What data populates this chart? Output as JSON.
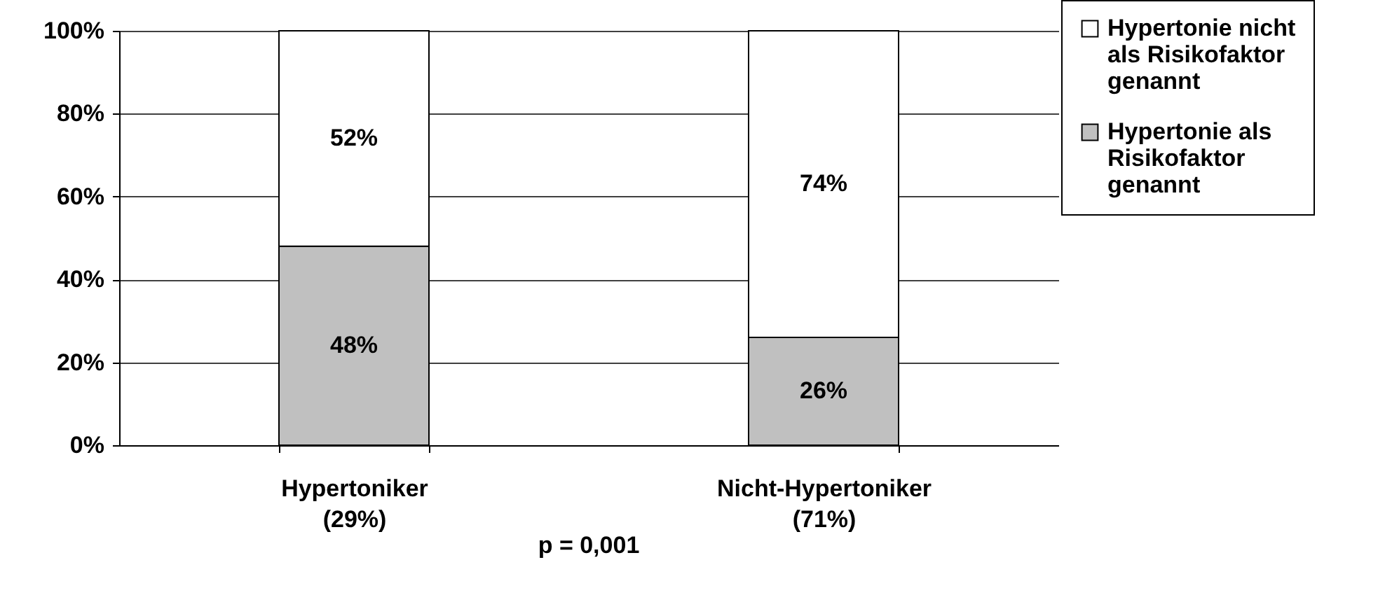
{
  "chart_data": {
    "type": "bar",
    "stacked": true,
    "categories": [
      "Hypertoniker\n(29%)",
      "Nicht-Hypertoniker\n(71%)"
    ],
    "series": [
      {
        "name": "Hypertonie als Risikofaktor genannt",
        "color": "#c0c0c0",
        "values": [
          48,
          26
        ],
        "value_labels": [
          "48%",
          "26%"
        ]
      },
      {
        "name": "Hypertonie nicht als Risikofaktor genannt",
        "color": "#ffffff",
        "values": [
          52,
          74
        ],
        "value_labels": [
          "52%",
          "74%"
        ]
      }
    ],
    "ylim": [
      0,
      100
    ],
    "yticks": [
      {
        "value": 0,
        "label": "0%"
      },
      {
        "value": 20,
        "label": "20%"
      },
      {
        "value": 40,
        "label": "40%"
      },
      {
        "value": 60,
        "label": "60%"
      },
      {
        "value": 80,
        "label": "80%"
      },
      {
        "value": 100,
        "label": "100%"
      }
    ],
    "grid": "y",
    "legend": "right",
    "annotations": [
      "p = 0,001"
    ]
  }
}
